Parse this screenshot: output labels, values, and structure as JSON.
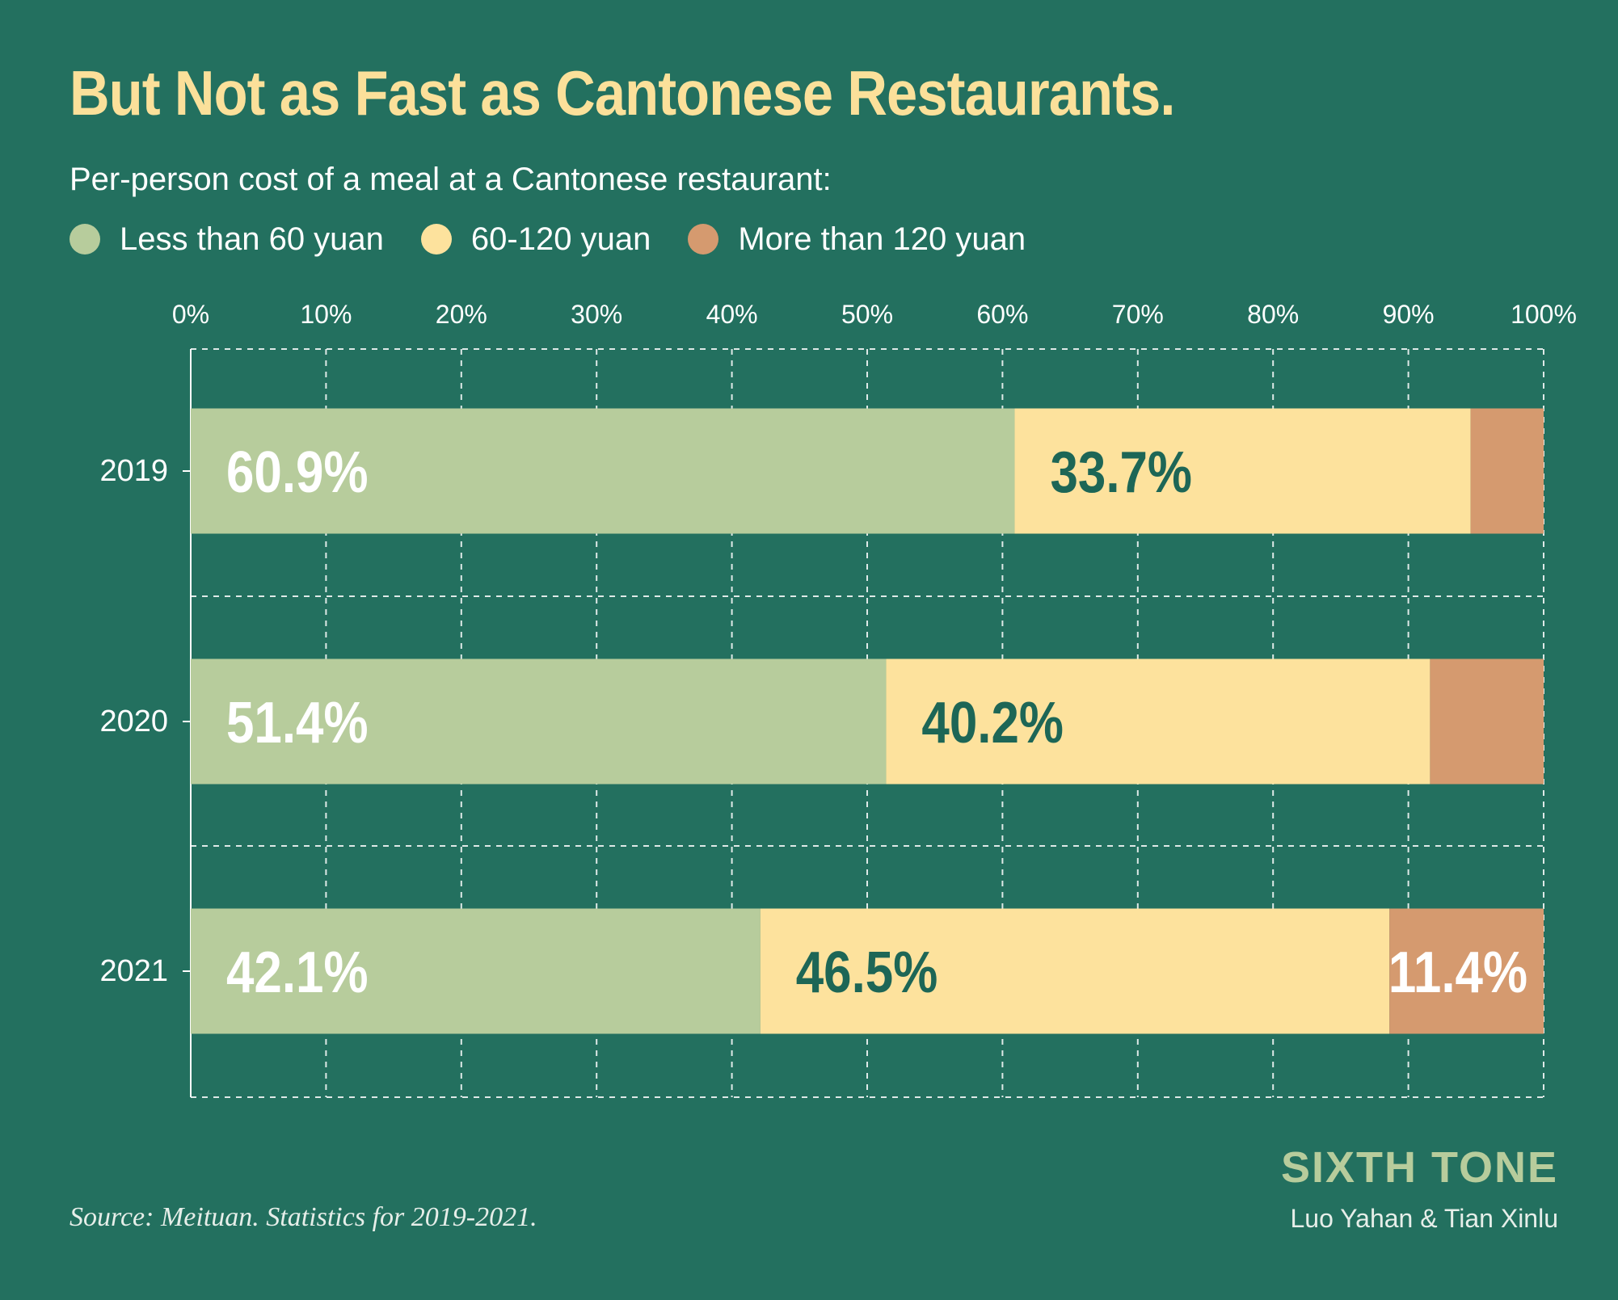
{
  "title": "But Not as Fast as Cantonese Restaurants.",
  "subtitle": "Per-person cost of a meal at a Cantonese restaurant:",
  "legend": [
    {
      "label": "Less than 60 yuan",
      "color": "#b7cc9c"
    },
    {
      "label": "60-120 yuan",
      "color": "#fde29d"
    },
    {
      "label": "More than 120 yuan",
      "color": "#d59a6f"
    }
  ],
  "source": "Source:  Meituan. Statistics for 2019-2021.",
  "brand": "SIXTH TONE",
  "authors": "Luo Yahan & Tian Xinlu",
  "colors": {
    "background": "#23705f",
    "title": "#fbe09a",
    "dark_label": "#1d6656",
    "light_label": "#ffffff"
  },
  "chart_data": {
    "type": "bar",
    "orientation": "horizontal",
    "stacked": true,
    "categories": [
      "2019",
      "2020",
      "2021"
    ],
    "series": [
      {
        "name": "Less than 60 yuan",
        "values": [
          60.9,
          51.4,
          42.1
        ],
        "labels": [
          "60.9%",
          "51.4%",
          "42.1%"
        ]
      },
      {
        "name": "60-120 yuan",
        "values": [
          33.7,
          40.2,
          46.5
        ],
        "labels": [
          "33.7%",
          "40.2%",
          "46.5%"
        ]
      },
      {
        "name": "More than 120 yuan",
        "values": [
          5.4,
          8.4,
          11.4
        ],
        "labels": [
          "",
          "",
          "11.4%"
        ]
      }
    ],
    "xlim": [
      0,
      100
    ],
    "xticks": [
      "0%",
      "10%",
      "20%",
      "30%",
      "40%",
      "50%",
      "60%",
      "70%",
      "80%",
      "90%",
      "100%"
    ],
    "grid": true,
    "legend_position": "top-left"
  }
}
